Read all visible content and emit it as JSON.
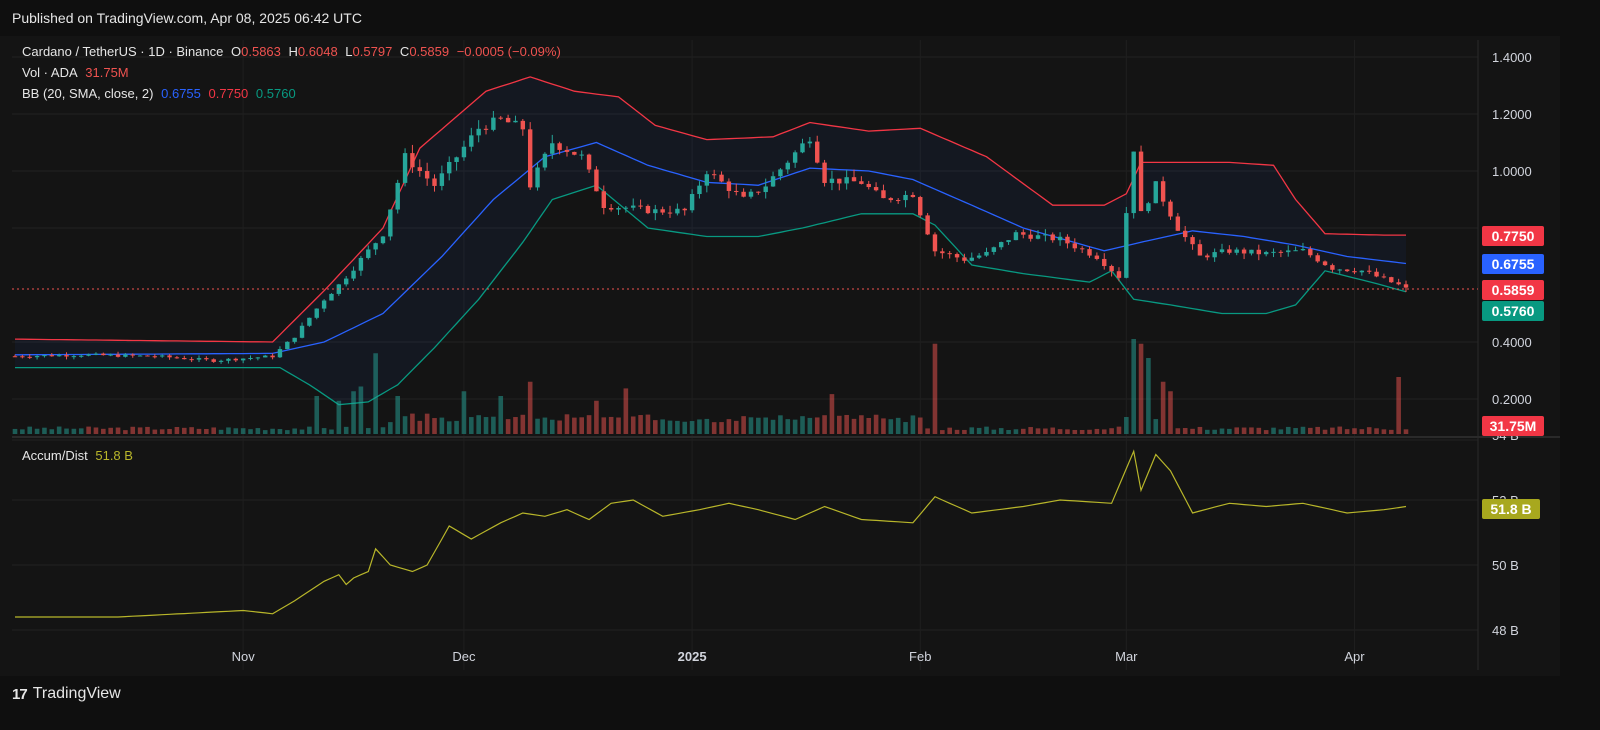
{
  "header": {
    "published": "Published on TradingView.com, Apr 08, 2025 06:42 UTC"
  },
  "legend": {
    "symbol": "Cardano / TetherUS · 1D · Binance",
    "o_label": "O",
    "o": "0.5863",
    "h_label": "H",
    "h": "0.6048",
    "l_label": "L",
    "l": "0.5797",
    "c_label": "C",
    "c": "0.5859",
    "change": "−0.0005 (−0.09%)",
    "vol_label": "Vol · ADA",
    "vol": "31.75M",
    "bb_label": "BB (20, SMA, close, 2)",
    "bb_basis": "0.6755",
    "bb_upper": "0.7750",
    "bb_lower": "0.5760",
    "ad_label": "Accum/Dist",
    "ad": "51.8 B"
  },
  "price_tags": {
    "upper": "0.7750",
    "basis": "0.6755",
    "last": "0.5859",
    "lower": "0.5760",
    "volume": "31.75M",
    "ad": "51.8 B"
  },
  "colors": {
    "up": "#26a69a",
    "down": "#ef5350",
    "basis": "#2962ff",
    "upper": "#f23645",
    "lower": "#089981",
    "ad": "#b8b62a"
  },
  "footer": {
    "brand": "TradingView",
    "logo": "17"
  },
  "chart_data": [
    {
      "type": "candlestick",
      "title": "Cardano / TetherUS · 1D · Binance",
      "ylim": [
        0.0,
        1.45
      ],
      "y_ticks": [
        "1.4000",
        "1.2000",
        "1.0000",
        "0.4000",
        "0.2000"
      ],
      "x_ticks": [
        "Nov",
        "Dec",
        "2025",
        "Feb",
        "Mar",
        "Apr"
      ],
      "keypoints": [
        [
          "2024-10-01",
          0.35
        ],
        [
          "2024-10-10",
          0.355
        ],
        [
          "2024-10-20",
          0.35
        ],
        [
          "2024-10-28",
          0.335
        ],
        [
          "2024-11-05",
          0.35
        ],
        [
          "2024-11-08",
          0.42
        ],
        [
          "2024-11-12",
          0.55
        ],
        [
          "2024-11-14",
          0.6
        ],
        [
          "2024-11-18",
          0.72
        ],
        [
          "2024-11-20",
          0.78
        ],
        [
          "2024-11-23",
          1.05
        ],
        [
          "2024-11-27",
          0.95
        ],
        [
          "2024-12-03",
          1.15
        ],
        [
          "2024-12-06",
          1.18
        ],
        [
          "2024-12-09",
          1.15
        ],
        [
          "2024-12-10",
          0.95
        ],
        [
          "2024-12-13",
          1.1
        ],
        [
          "2024-12-17",
          1.05
        ],
        [
          "2024-12-20",
          0.88
        ],
        [
          "2024-12-27",
          0.86
        ],
        [
          "2024-12-31",
          0.86
        ],
        [
          "2025-01-03",
          1.0
        ],
        [
          "2025-01-08",
          0.9
        ],
        [
          "2025-01-11",
          0.95
        ],
        [
          "2025-01-17",
          1.12
        ],
        [
          "2025-01-19",
          0.97
        ],
        [
          "2025-01-24",
          0.96
        ],
        [
          "2025-01-27",
          0.9
        ],
        [
          "2025-01-31",
          0.92
        ],
        [
          "2025-02-03",
          0.72
        ],
        [
          "2025-02-07",
          0.69
        ],
        [
          "2025-02-10",
          0.71
        ],
        [
          "2025-02-14",
          0.78
        ],
        [
          "2025-02-20",
          0.76
        ],
        [
          "2025-02-25",
          0.7
        ],
        [
          "2025-02-28",
          0.63
        ],
        [
          "2025-03-02",
          1.08
        ],
        [
          "2025-03-03",
          0.85
        ],
        [
          "2025-03-05",
          0.95
        ],
        [
          "2025-03-08",
          0.8
        ],
        [
          "2025-03-11",
          0.7
        ],
        [
          "2025-03-15",
          0.72
        ],
        [
          "2025-03-20",
          0.71
        ],
        [
          "2025-03-25",
          0.72
        ],
        [
          "2025-03-29",
          0.66
        ],
        [
          "2025-04-02",
          0.65
        ],
        [
          "2025-04-07",
          0.6
        ],
        [
          "2025-04-08",
          0.5859
        ]
      ],
      "bb_upper": [
        [
          "2024-10-01",
          0.41
        ],
        [
          "2024-11-05",
          0.4
        ],
        [
          "2024-11-12",
          0.58
        ],
        [
          "2024-11-20",
          0.8
        ],
        [
          "2024-11-25",
          1.08
        ],
        [
          "2024-12-04",
          1.28
        ],
        [
          "2024-12-10",
          1.33
        ],
        [
          "2024-12-16",
          1.28
        ],
        [
          "2024-12-22",
          1.26
        ],
        [
          "2024-12-27",
          1.16
        ],
        [
          "2025-01-03",
          1.11
        ],
        [
          "2025-01-12",
          1.12
        ],
        [
          "2025-01-17",
          1.17
        ],
        [
          "2025-01-25",
          1.14
        ],
        [
          "2025-02-01",
          1.15
        ],
        [
          "2025-02-10",
          1.05
        ],
        [
          "2025-02-19",
          0.88
        ],
        [
          "2025-02-26",
          0.88
        ],
        [
          "2025-03-01",
          0.92
        ],
        [
          "2025-03-03",
          1.03
        ],
        [
          "2025-03-15",
          1.03
        ],
        [
          "2025-03-21",
          1.02
        ],
        [
          "2025-03-24",
          0.9
        ],
        [
          "2025-03-28",
          0.78
        ],
        [
          "2025-04-05",
          0.775
        ],
        [
          "2025-04-08",
          0.775
        ]
      ],
      "bb_basis": [
        [
          "2024-10-01",
          0.355
        ],
        [
          "2024-11-05",
          0.36
        ],
        [
          "2024-11-12",
          0.4
        ],
        [
          "2024-11-20",
          0.5
        ],
        [
          "2024-11-28",
          0.7
        ],
        [
          "2024-12-05",
          0.9
        ],
        [
          "2024-12-12",
          1.05
        ],
        [
          "2024-12-19",
          1.1
        ],
        [
          "2024-12-26",
          1.02
        ],
        [
          "2025-01-03",
          0.96
        ],
        [
          "2025-01-10",
          0.95
        ],
        [
          "2025-01-17",
          1.01
        ],
        [
          "2025-01-25",
          1.0
        ],
        [
          "2025-01-31",
          0.97
        ],
        [
          "2025-02-08",
          0.88
        ],
        [
          "2025-02-15",
          0.8
        ],
        [
          "2025-02-26",
          0.72
        ],
        [
          "2025-03-03",
          0.75
        ],
        [
          "2025-03-10",
          0.79
        ],
        [
          "2025-03-17",
          0.77
        ],
        [
          "2025-03-24",
          0.74
        ],
        [
          "2025-03-31",
          0.7
        ],
        [
          "2025-04-08",
          0.6755
        ]
      ],
      "bb_lower": [
        [
          "2024-10-01",
          0.31
        ],
        [
          "2024-11-01",
          0.31
        ],
        [
          "2024-11-06",
          0.31
        ],
        [
          "2024-11-10",
          0.25
        ],
        [
          "2024-11-14",
          0.18
        ],
        [
          "2024-11-18",
          0.19
        ],
        [
          "2024-11-22",
          0.25
        ],
        [
          "2024-11-27",
          0.38
        ],
        [
          "2024-12-03",
          0.55
        ],
        [
          "2024-12-09",
          0.75
        ],
        [
          "2024-12-13",
          0.9
        ],
        [
          "2024-12-19",
          0.95
        ],
        [
          "2024-12-26",
          0.8
        ],
        [
          "2025-01-03",
          0.77
        ],
        [
          "2025-01-10",
          0.77
        ],
        [
          "2025-01-16",
          0.8
        ],
        [
          "2025-01-24",
          0.85
        ],
        [
          "2025-01-31",
          0.85
        ],
        [
          "2025-02-03",
          0.81
        ],
        [
          "2025-02-08",
          0.67
        ],
        [
          "2025-02-15",
          0.64
        ],
        [
          "2025-02-24",
          0.61
        ],
        [
          "2025-02-27",
          0.65
        ],
        [
          "2025-03-02",
          0.55
        ],
        [
          "2025-03-07",
          0.53
        ],
        [
          "2025-03-14",
          0.5
        ],
        [
          "2025-03-20",
          0.5
        ],
        [
          "2025-03-24",
          0.53
        ],
        [
          "2025-03-28",
          0.65
        ],
        [
          "2025-04-04",
          0.605
        ],
        [
          "2025-04-08",
          0.576
        ]
      ]
    },
    {
      "type": "bar",
      "title": "Vol · ADA",
      "series": [
        {
          "name": "Vol · ADA",
          "last": "31.75M"
        }
      ],
      "spikes": [
        [
          "2024-11-11",
          0.4
        ],
        [
          "2024-11-14",
          0.35
        ],
        [
          "2024-11-16",
          0.45
        ],
        [
          "2024-11-17",
          0.5
        ],
        [
          "2024-11-19",
          0.85
        ],
        [
          "2024-11-22",
          0.4
        ],
        [
          "2024-12-01",
          0.45
        ],
        [
          "2024-12-06",
          0.4
        ],
        [
          "2024-12-10",
          0.55
        ],
        [
          "2024-12-19",
          0.35
        ],
        [
          "2024-12-23",
          0.48
        ],
        [
          "2025-01-20",
          0.42
        ],
        [
          "2025-02-03",
          0.95
        ],
        [
          "2025-03-02",
          1.0
        ],
        [
          "2025-03-03",
          0.95
        ],
        [
          "2025-03-04",
          0.8
        ],
        [
          "2025-03-06",
          0.55
        ],
        [
          "2025-03-07",
          0.45
        ],
        [
          "2025-04-07",
          0.6
        ]
      ]
    },
    {
      "type": "line",
      "title": "Accum/Dist",
      "y_ticks": [
        "54 B",
        "52 B",
        "50 B",
        "48 B"
      ],
      "ylim": [
        47.4,
        54.2
      ],
      "series": [
        {
          "name": "Accum/Dist",
          "last": "51.8 B",
          "points": [
            [
              "2024-10-01",
              48.4
            ],
            [
              "2024-10-15",
              48.4
            ],
            [
              "2024-11-01",
              48.6
            ],
            [
              "2024-11-05",
              48.5
            ],
            [
              "2024-11-08",
              48.9
            ],
            [
              "2024-11-12",
              49.5
            ],
            [
              "2024-11-14",
              49.7
            ],
            [
              "2024-11-15",
              49.4
            ],
            [
              "2024-11-16",
              49.6
            ],
            [
              "2024-11-18",
              49.8
            ],
            [
              "2024-11-19",
              50.5
            ],
            [
              "2024-11-21",
              50.0
            ],
            [
              "2024-11-24",
              49.8
            ],
            [
              "2024-11-26",
              50.0
            ],
            [
              "2024-11-29",
              51.2
            ],
            [
              "2024-12-02",
              50.8
            ],
            [
              "2024-12-06",
              51.3
            ],
            [
              "2024-12-09",
              51.6
            ],
            [
              "2024-12-12",
              51.5
            ],
            [
              "2024-12-15",
              51.7
            ],
            [
              "2024-12-18",
              51.4
            ],
            [
              "2024-12-21",
              51.9
            ],
            [
              "2024-12-24",
              52.0
            ],
            [
              "2024-12-28",
              51.5
            ],
            [
              "2025-01-02",
              51.7
            ],
            [
              "2025-01-06",
              51.9
            ],
            [
              "2025-01-10",
              51.7
            ],
            [
              "2025-01-15",
              51.4
            ],
            [
              "2025-01-19",
              51.8
            ],
            [
              "2025-01-24",
              51.4
            ],
            [
              "2025-01-31",
              51.3
            ],
            [
              "2025-02-03",
              52.1
            ],
            [
              "2025-02-08",
              51.6
            ],
            [
              "2025-02-15",
              51.8
            ],
            [
              "2025-02-20",
              52.0
            ],
            [
              "2025-02-27",
              51.9
            ],
            [
              "2025-03-02",
              53.5
            ],
            [
              "2025-03-03",
              52.3
            ],
            [
              "2025-03-05",
              53.4
            ],
            [
              "2025-03-07",
              52.9
            ],
            [
              "2025-03-10",
              51.6
            ],
            [
              "2025-03-15",
              51.9
            ],
            [
              "2025-03-20",
              51.8
            ],
            [
              "2025-03-25",
              51.9
            ],
            [
              "2025-03-31",
              51.6
            ],
            [
              "2025-04-05",
              51.7
            ],
            [
              "2025-04-08",
              51.8
            ]
          ]
        }
      ]
    }
  ]
}
